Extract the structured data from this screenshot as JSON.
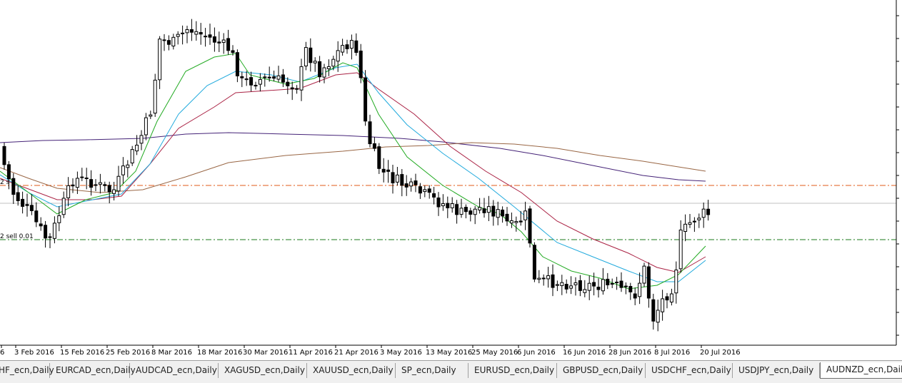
{
  "chart": {
    "symbol": "AUDNZD_ecn",
    "timeframe": "Daily",
    "x_labels": [
      "6",
      "3 Feb 2016",
      "15 Feb 2016",
      "25 Feb 2016",
      "8 Mar 2016",
      "18 Mar 2016",
      "30 Mar 2016",
      "11 Apr 2016",
      "21 Apr 2016",
      "3 May 2016",
      "13 May 2016",
      "25 May 2016",
      "6 Jun 2016",
      "16 Jun 2016",
      "28 Jun 2016",
      "8 Jul 2016",
      "20 Jul 2016"
    ],
    "trade_labels": [
      "2 s",
      "2 sell 0.01"
    ],
    "colors": {
      "bull_candle": "#ffffff",
      "bear_candle": "#000000",
      "ma_green": "#22aa22",
      "ma_cyan": "#22aadd",
      "ma_red": "#aa2244",
      "ma_purple": "#442277",
      "ma_brown": "#996644",
      "level_orange": "#e05a1a",
      "level_green": "#1a7a1a",
      "level_gray": "#c0c0c0"
    }
  },
  "tabs": [
    {
      "label": "HF_ecn,Daily",
      "active": false
    },
    {
      "label": "EURCAD_ecn,Daily",
      "active": false
    },
    {
      "label": "AUDCAD_ecn,Daily",
      "active": false
    },
    {
      "label": "XAGUSD_ecn,Daily",
      "active": false
    },
    {
      "label": "XAUUSD_ecn,Daily",
      "active": false
    },
    {
      "label": "SP_ecn,Daily",
      "active": false
    },
    {
      "label": "EURUSD_ecn,Daily",
      "active": false
    },
    {
      "label": "GBPUSD_ecn,Daily",
      "active": false
    },
    {
      "label": "USDCHF_ecn,Daily",
      "active": false
    },
    {
      "label": "USDJPY_ecn,Daily",
      "active": false
    },
    {
      "label": "AUDNZD_ecn,Daily",
      "active": true
    }
  ]
}
